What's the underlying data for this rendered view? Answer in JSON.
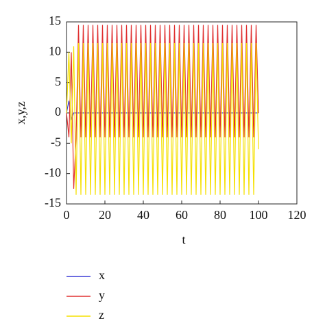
{
  "chart_data": {
    "type": "line",
    "xlabel": "t",
    "ylabel": "x,y,z",
    "xlim": [
      0,
      120
    ],
    "xticks": [
      0,
      20,
      40,
      60,
      80,
      100,
      120
    ],
    "ylim": [
      -15,
      15
    ],
    "yticks": [
      -15,
      -10,
      -5,
      0,
      5,
      10,
      15
    ],
    "grid": false,
    "legend": "below",
    "x": [
      0,
      1.25,
      2.5,
      3.75,
      5,
      6.25,
      7.5,
      8.75,
      10,
      11.25,
      12.5,
      13.75,
      15,
      16.25,
      17.5,
      18.75,
      20,
      21.25,
      22.5,
      23.75,
      25,
      26.25,
      27.5,
      28.75,
      30,
      31.25,
      32.5,
      33.75,
      35,
      36.25,
      37.5,
      38.75,
      40,
      41.25,
      42.5,
      43.75,
      45,
      46.25,
      47.5,
      48.75,
      50,
      51.25,
      52.5,
      53.75,
      55,
      56.25,
      57.5,
      58.75,
      60,
      61.25,
      62.5,
      63.75,
      65,
      66.25,
      67.5,
      68.75,
      70,
      71.25,
      72.5,
      73.75,
      75,
      76.25,
      77.5,
      78.75,
      80,
      81.25,
      82.5,
      83.75,
      85,
      86.25,
      87.5,
      88.75,
      90,
      91.25,
      92.5,
      93.75,
      95,
      96.25,
      97.5,
      98.75,
      100
    ],
    "series": [
      {
        "name": "x",
        "color": "#3b3bd6",
        "values": [
          0,
          2,
          -1,
          0,
          0,
          0,
          0,
          0,
          0,
          0,
          0,
          0,
          0,
          0,
          0,
          0,
          0,
          0,
          0,
          0,
          0,
          0,
          0,
          0,
          0,
          0,
          0,
          0,
          0,
          0,
          0,
          0,
          0,
          0,
          0,
          0,
          0,
          0,
          0,
          0,
          0,
          0,
          0,
          0,
          0,
          0,
          0,
          0,
          0,
          0,
          0,
          0,
          0,
          0,
          0,
          0,
          0,
          0,
          0,
          0,
          0,
          0,
          0,
          0,
          0,
          0,
          0,
          0,
          0,
          0,
          0,
          0,
          0,
          0,
          0,
          0,
          0,
          0,
          0,
          0,
          0
        ]
      },
      {
        "name": "y",
        "color": "#e03030",
        "values": [
          0,
          -4,
          10,
          -12.5,
          -4,
          14.5,
          -4,
          14.5,
          -4,
          14.5,
          -4,
          14.5,
          -4,
          14.5,
          -4,
          14.5,
          -4,
          14.5,
          -4,
          14.5,
          -4,
          14.5,
          -4,
          14.5,
          -4,
          14.5,
          -4,
          14.5,
          -4,
          14.5,
          -4,
          14.5,
          -4,
          14.5,
          -4,
          14.5,
          -4,
          14.5,
          -4,
          14.5,
          -4,
          14.5,
          -4,
          14.5,
          -4,
          14.5,
          -4,
          14.5,
          -4,
          14.5,
          -4,
          14.5,
          -4,
          14.5,
          -4,
          14.5,
          -4,
          14.5,
          -4,
          14.5,
          -4,
          14.5,
          -4,
          14.5,
          -4,
          14.5,
          -4,
          14.5,
          -4,
          14.5,
          -4,
          14.5,
          -4,
          14.5,
          -4,
          14.5,
          -4,
          14.5,
          -4,
          14.5,
          0
        ]
      },
      {
        "name": "z",
        "color": "#f5e000",
        "values": [
          0,
          10,
          -5,
          11,
          -13.5,
          11.5,
          -13.5,
          11.5,
          -13.5,
          11.5,
          -13.5,
          11.5,
          -13.5,
          11.5,
          -13.5,
          11.5,
          -13.5,
          11.5,
          -13.5,
          11.5,
          -13.5,
          11.5,
          -13.5,
          11.5,
          -13.5,
          11.5,
          -13.5,
          11.5,
          -13.5,
          11.5,
          -13.5,
          11.5,
          -13.5,
          11.5,
          -13.5,
          11.5,
          -13.5,
          11.5,
          -13.5,
          11.5,
          -13.5,
          11.5,
          -13.5,
          11.5,
          -13.5,
          11.5,
          -13.5,
          11.5,
          -13.5,
          11.5,
          -13.5,
          11.5,
          -13.5,
          11.5,
          -13.5,
          11.5,
          -13.5,
          11.5,
          -13.5,
          11.5,
          -13.5,
          11.5,
          -13.5,
          11.5,
          -13.5,
          11.5,
          -13.5,
          11.5,
          -13.5,
          11.5,
          -13.5,
          11.5,
          -13.5,
          11.5,
          -13.5,
          11.5,
          -13.5,
          11.5,
          -13.5,
          11.5,
          -6
        ]
      }
    ]
  }
}
